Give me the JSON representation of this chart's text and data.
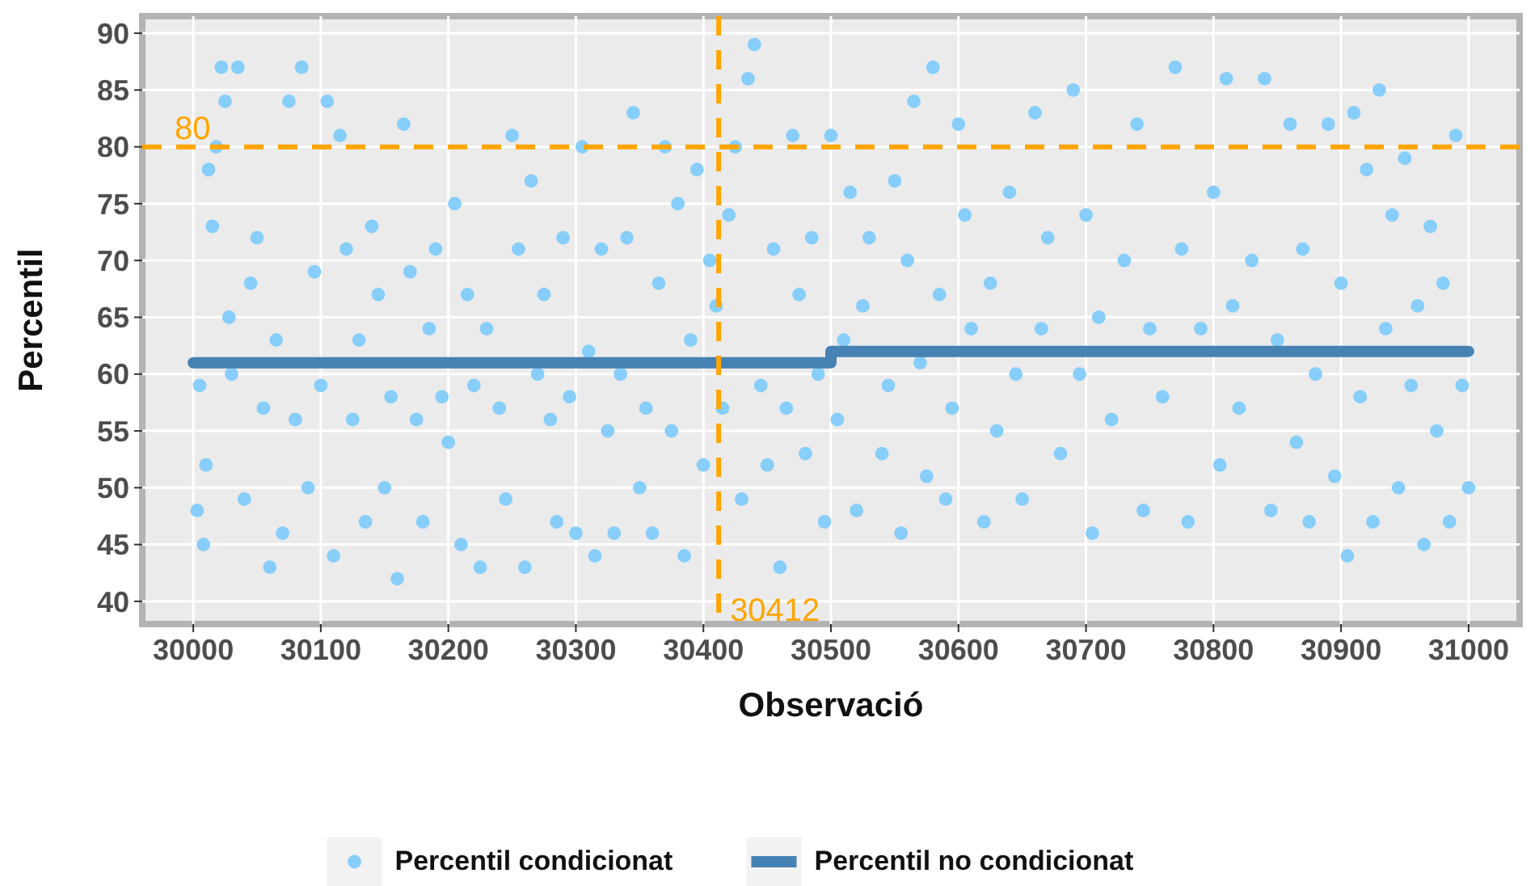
{
  "chart_data": {
    "type": "scatter",
    "xlabel": "Observació",
    "ylabel": "Percentil",
    "xlim": [
      29960,
      31040
    ],
    "ylim": [
      38,
      91.5
    ],
    "xticks": [
      30000,
      30100,
      30200,
      30300,
      30400,
      30500,
      30600,
      30700,
      30800,
      30900,
      31000
    ],
    "yticks": [
      40,
      45,
      50,
      55,
      60,
      65,
      70,
      75,
      80,
      85,
      90
    ],
    "grid": true,
    "legend": "bottom",
    "marker": "circle",
    "ref_lines": [
      {
        "axis": "y",
        "value": 80,
        "label": "80",
        "color": "#ffa500",
        "line_style": "dashed"
      },
      {
        "axis": "x",
        "value": 30412,
        "label": "30412",
        "color": "#ffa500",
        "line_style": "dashed"
      }
    ],
    "series": [
      {
        "name": "Percentil condicionat",
        "color": "#87cefa",
        "x": [
          30003,
          30005,
          30008,
          30010,
          30012,
          30015,
          30018,
          30022,
          30025,
          30028,
          30030,
          30035,
          30040,
          30045,
          30050,
          30055,
          30060,
          30065,
          30070,
          30075,
          30080,
          30085,
          30090,
          30095,
          30100,
          30105,
          30110,
          30115,
          30120,
          30125,
          30130,
          30135,
          30140,
          30145,
          30150,
          30155,
          30160,
          30165,
          30170,
          30175,
          30180,
          30185,
          30190,
          30195,
          30200,
          30205,
          30210,
          30215,
          30220,
          30225,
          30230,
          30240,
          30245,
          30250,
          30255,
          30260,
          30265,
          30270,
          30275,
          30280,
          30285,
          30290,
          30295,
          30300,
          30305,
          30310,
          30315,
          30320,
          30325,
          30330,
          30335,
          30340,
          30345,
          30350,
          30355,
          30360,
          30365,
          30370,
          30375,
          30380,
          30385,
          30390,
          30395,
          30400,
          30405,
          30410,
          30415,
          30420,
          30425,
          30430,
          30435,
          30440,
          30445,
          30450,
          30455,
          30460,
          30465,
          30470,
          30475,
          30480,
          30485,
          30490,
          30495,
          30500,
          30505,
          30510,
          30515,
          30520,
          30525,
          30530,
          30540,
          30545,
          30550,
          30555,
          30560,
          30565,
          30570,
          30575,
          30580,
          30585,
          30590,
          30595,
          30600,
          30605,
          30610,
          30620,
          30625,
          30630,
          30640,
          30645,
          30650,
          30660,
          30665,
          30670,
          30680,
          30690,
          30695,
          30700,
          30705,
          30710,
          30720,
          30730,
          30740,
          30745,
          30750,
          30760,
          30770,
          30775,
          30780,
          30790,
          30800,
          30805,
          30810,
          30815,
          30820,
          30830,
          30840,
          30845,
          30850,
          30860,
          30865,
          30870,
          30875,
          30880,
          30890,
          30895,
          30900,
          30905,
          30910,
          30915,
          30920,
          30925,
          30930,
          30935,
          30940,
          30945,
          30950,
          30955,
          30960,
          30965,
          30970,
          30975,
          30980,
          30985,
          30990,
          30995,
          31000
        ],
        "values": [
          48,
          59,
          45,
          52,
          78,
          73,
          80,
          87,
          84,
          65,
          60,
          87,
          49,
          68,
          72,
          57,
          43,
          63,
          46,
          84,
          56,
          87,
          50,
          69,
          59,
          84,
          44,
          81,
          71,
          56,
          63,
          47,
          73,
          67,
          50,
          58,
          42,
          82,
          69,
          56,
          47,
          64,
          71,
          58,
          54,
          75,
          45,
          67,
          59,
          43,
          64,
          57,
          49,
          81,
          71,
          43,
          77,
          60,
          67,
          56,
          47,
          72,
          58,
          46,
          80,
          62,
          44,
          71,
          55,
          46,
          60,
          72,
          83,
          50,
          57,
          46,
          68,
          80,
          55,
          75,
          44,
          63,
          78,
          52,
          70,
          66,
          57,
          74,
          80,
          49,
          86,
          89,
          59,
          52,
          71,
          43,
          57,
          81,
          67,
          53,
          72,
          60,
          47,
          81,
          56,
          63,
          76,
          48,
          66,
          72,
          53,
          59,
          77,
          46,
          70,
          84,
          61,
          51,
          87,
          67,
          49,
          57,
          82,
          74,
          64,
          47,
          68,
          55,
          76,
          60,
          49,
          83,
          64,
          72,
          53,
          85,
          60,
          74,
          46,
          65,
          56,
          70,
          82,
          48,
          64,
          58,
          87,
          71,
          47,
          64,
          76,
          52,
          86,
          66,
          57,
          70,
          86,
          48,
          63,
          82,
          54,
          71,
          47,
          60,
          82,
          51,
          68,
          44,
          83,
          58,
          78,
          47,
          85,
          64,
          74,
          50,
          79,
          59,
          66,
          45,
          73,
          55,
          68,
          47,
          81,
          59,
          50
        ]
      },
      {
        "name": "Percentil no condicionat",
        "color": "#4682b4",
        "type": "line",
        "marker": "none",
        "x": [
          30000,
          30500,
          30500,
          31000
        ],
        "values": [
          61,
          61,
          62,
          62
        ]
      }
    ]
  }
}
